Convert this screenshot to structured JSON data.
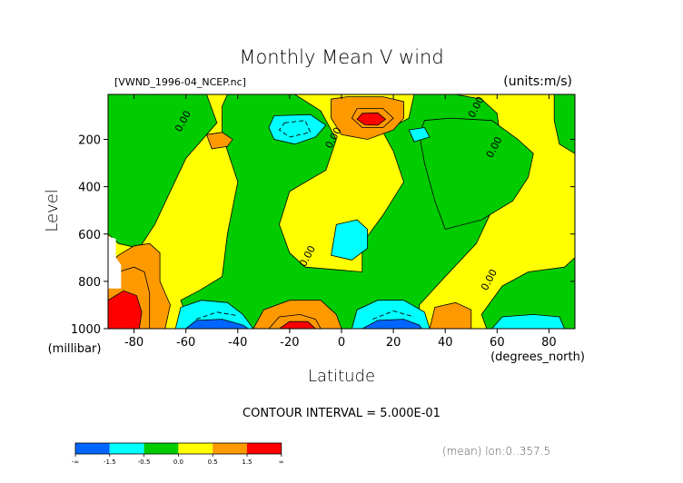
{
  "chart_data": {
    "type": "contour",
    "title": "Monthly Mean V wind",
    "source_label": "[VWND_1996-04_NCEP.nc]",
    "units_label": "(units:m/s)",
    "xlabel": "Latitude",
    "x_units": "(degrees_north)",
    "ylabel": "Level",
    "y_units": "(millibar)",
    "xlim": [
      -90,
      90
    ],
    "ylim": [
      1000,
      10
    ],
    "x_ticks": [
      -80,
      -60,
      -40,
      -20,
      0,
      20,
      40,
      60,
      80
    ],
    "x_tick_labels": [
      "-80",
      "-60",
      "-40",
      "-20",
      "0",
      "20",
      "40",
      "60",
      "80"
    ],
    "y_ticks": [
      200,
      400,
      600,
      800,
      1000
    ],
    "y_tick_labels": [
      "200",
      "400",
      "600",
      "800",
      "1000"
    ],
    "contour_interval_text": "CONTOUR INTERVAL = 5.000E-01",
    "contour_labels": [
      {
        "text": "0.00",
        "x": -60,
        "y": 130
      },
      {
        "text": "0.00",
        "x": -2,
        "y": 200
      },
      {
        "text": "0.00",
        "x": 53,
        "y": 70
      },
      {
        "text": "0.00",
        "x": 60,
        "y": 240
      },
      {
        "text": "0.00",
        "x": -12,
        "y": 700
      },
      {
        "text": "0.00",
        "x": 58,
        "y": 800
      }
    ],
    "regions": [
      {
        "level": "0 to 0.5",
        "color": "#FFFF00",
        "polygon": [
          [
            -90,
            10
          ],
          [
            90,
            10
          ],
          [
            90,
            1000
          ],
          [
            -90,
            1000
          ]
        ]
      },
      {
        "level": "-0.5 to 0",
        "color": "#00CC00",
        "polygon": [
          [
            -78,
            10
          ],
          [
            -52,
            10
          ],
          [
            -48,
            130
          ],
          [
            -60,
            280
          ],
          [
            -66,
            420
          ],
          [
            -72,
            560
          ],
          [
            -78,
            660
          ],
          [
            -86,
            640
          ],
          [
            -90,
            600
          ],
          [
            -90,
            10
          ]
        ]
      },
      {
        "level": "-0.5 to 0",
        "color": "#00CC00",
        "polygon": [
          [
            -44,
            10
          ],
          [
            -18,
            10
          ],
          [
            -8,
            80
          ],
          [
            -2,
            200
          ],
          [
            -6,
            330
          ],
          [
            -20,
            420
          ],
          [
            -24,
            560
          ],
          [
            -20,
            680
          ],
          [
            -14,
            740
          ],
          [
            8,
            760
          ],
          [
            8,
            640
          ],
          [
            16,
            520
          ],
          [
            24,
            380
          ],
          [
            20,
            250
          ],
          [
            16,
            170
          ],
          [
            26,
            110
          ],
          [
            28,
            10
          ],
          [
            44,
            10
          ],
          [
            54,
            30
          ],
          [
            60,
            90
          ],
          [
            62,
            260
          ],
          [
            58,
            500
          ],
          [
            52,
            640
          ],
          [
            40,
            780
          ],
          [
            30,
            900
          ],
          [
            30,
            1000
          ],
          [
            -58,
            1000
          ],
          [
            -62,
            880
          ],
          [
            -55,
            840
          ],
          [
            -46,
            780
          ],
          [
            -44,
            600
          ],
          [
            -40,
            380
          ],
          [
            -46,
            180
          ],
          [
            -46,
            60
          ]
        ]
      },
      {
        "level": "-0.5 to 0",
        "color": "#00CC00",
        "polygon": [
          [
            32,
            120
          ],
          [
            42,
            110
          ],
          [
            58,
            120
          ],
          [
            68,
            200
          ],
          [
            74,
            260
          ],
          [
            72,
            360
          ],
          [
            66,
            460
          ],
          [
            54,
            540
          ],
          [
            40,
            580
          ],
          [
            36,
            460
          ],
          [
            32,
            300
          ],
          [
            30,
            180
          ]
        ]
      },
      {
        "level": "-0.5 to 0",
        "color": "#00CC00",
        "polygon": [
          [
            54,
            940
          ],
          [
            62,
            820
          ],
          [
            72,
            760
          ],
          [
            86,
            740
          ],
          [
            90,
            700
          ],
          [
            90,
            1000
          ],
          [
            56,
            1000
          ]
        ]
      },
      {
        "level": "-0.5 to 0",
        "color": "#00CC00",
        "polygon": [
          [
            82,
            10
          ],
          [
            90,
            10
          ],
          [
            90,
            260
          ],
          [
            84,
            220
          ],
          [
            82,
            120
          ]
        ]
      },
      {
        "level": "-1.0 to -0.5",
        "color": "#00FFFF",
        "polygon": [
          [
            -26,
            100
          ],
          [
            -12,
            95
          ],
          [
            -6,
            140
          ],
          [
            -10,
            190
          ],
          [
            -18,
            220
          ],
          [
            -26,
            200
          ],
          [
            -28,
            150
          ]
        ]
      },
      {
        "level": "-1.0 to -0.5",
        "color": "#00FFFF",
        "polygon": [
          [
            26,
            160
          ],
          [
            32,
            150
          ],
          [
            34,
            190
          ],
          [
            28,
            210
          ]
        ]
      },
      {
        "level": "-1.0 to -0.5",
        "color": "#00FFFF",
        "polygon": [
          [
            -2,
            560
          ],
          [
            6,
            540
          ],
          [
            10,
            580
          ],
          [
            10,
            660
          ],
          [
            4,
            710
          ],
          [
            -4,
            690
          ]
        ]
      },
      {
        "level": "-1.0 to -0.5",
        "color": "#00FFFF",
        "polygon": [
          [
            -64,
            1000
          ],
          [
            -62,
            910
          ],
          [
            -54,
            880
          ],
          [
            -44,
            890
          ],
          [
            -38,
            940
          ],
          [
            -34,
            1000
          ]
        ]
      },
      {
        "level": "-1.0 to -0.5",
        "color": "#00FFFF",
        "polygon": [
          [
            4,
            1000
          ],
          [
            6,
            920
          ],
          [
            14,
            880
          ],
          [
            24,
            880
          ],
          [
            32,
            930
          ],
          [
            34,
            1000
          ]
        ]
      },
      {
        "level": "-1.0 to -0.5",
        "color": "#00FFFF",
        "polygon": [
          [
            58,
            1000
          ],
          [
            62,
            950
          ],
          [
            74,
            940
          ],
          [
            84,
            950
          ],
          [
            86,
            1000
          ]
        ]
      },
      {
        "level": "-1.5 to -1.0",
        "color": "#0066FF",
        "polygon": [
          [
            -60,
            1000
          ],
          [
            -56,
            965
          ],
          [
            -46,
            960
          ],
          [
            -38,
            985
          ],
          [
            -36,
            1000
          ]
        ]
      },
      {
        "level": "-1.5 to -1.0",
        "color": "#0066FF",
        "polygon": [
          [
            8,
            1000
          ],
          [
            14,
            965
          ],
          [
            24,
            960
          ],
          [
            30,
            985
          ],
          [
            31,
            1000
          ]
        ]
      },
      {
        "level": "0.5 to 1.0",
        "color": "#FF9900",
        "polygon": [
          [
            -4,
            30
          ],
          [
            2,
            20
          ],
          [
            16,
            20
          ],
          [
            24,
            40
          ],
          [
            24,
            110
          ],
          [
            20,
            160
          ],
          [
            10,
            200
          ],
          [
            0,
            180
          ],
          [
            -4,
            110
          ]
        ]
      },
      {
        "level": "0.5 to 1.0",
        "color": "#FF9900",
        "polygon": [
          [
            -52,
            180
          ],
          [
            -46,
            170
          ],
          [
            -42,
            200
          ],
          [
            -44,
            230
          ],
          [
            -50,
            240
          ]
        ]
      },
      {
        "level": "0.5 to 1.0",
        "color": "#FF9900",
        "polygon": [
          [
            -90,
            730
          ],
          [
            -86,
            690
          ],
          [
            -80,
            650
          ],
          [
            -74,
            640
          ],
          [
            -70,
            680
          ],
          [
            -70,
            800
          ],
          [
            -66,
            900
          ],
          [
            -68,
            1000
          ],
          [
            -90,
            1000
          ]
        ]
      },
      {
        "level": "0.5 to 1.0",
        "color": "#FF9900",
        "polygon": [
          [
            -34,
            1000
          ],
          [
            -30,
            920
          ],
          [
            -20,
            880
          ],
          [
            -8,
            880
          ],
          [
            -2,
            940
          ],
          [
            0,
            1000
          ]
        ]
      },
      {
        "level": "0.5 to 1.0",
        "color": "#FF9900",
        "polygon": [
          [
            34,
            1000
          ],
          [
            36,
            910
          ],
          [
            44,
            890
          ],
          [
            50,
            920
          ],
          [
            50,
            1000
          ]
        ]
      },
      {
        "level": "1.0 to 1.5",
        "color": "#FF9900",
        "polygon": [
          [
            6,
            70
          ],
          [
            16,
            70
          ],
          [
            20,
            110
          ],
          [
            16,
            150
          ],
          [
            8,
            150
          ],
          [
            4,
            110
          ]
        ]
      },
      {
        "level": "1.0 to 1.5",
        "color": "#FF9900",
        "polygon": [
          [
            -90,
            800
          ],
          [
            -86,
            760
          ],
          [
            -80,
            740
          ],
          [
            -76,
            760
          ],
          [
            -74,
            850
          ],
          [
            -74,
            1000
          ],
          [
            -90,
            1000
          ]
        ]
      },
      {
        "level": "1.0 to 1.5",
        "color": "#FF9900",
        "polygon": [
          [
            -28,
            1000
          ],
          [
            -24,
            950
          ],
          [
            -16,
            940
          ],
          [
            -10,
            960
          ],
          [
            -8,
            1000
          ]
        ]
      },
      {
        "level": "> 1.5",
        "color": "#FF0000",
        "polygon": [
          [
            8,
            90
          ],
          [
            14,
            88
          ],
          [
            17,
            115
          ],
          [
            14,
            140
          ],
          [
            9,
            138
          ],
          [
            6,
            115
          ]
        ]
      },
      {
        "level": "> 1.5",
        "color": "#FF0000",
        "polygon": [
          [
            -90,
            880
          ],
          [
            -84,
            840
          ],
          [
            -79,
            860
          ],
          [
            -77,
            930
          ],
          [
            -78,
            1000
          ],
          [
            -90,
            1000
          ]
        ]
      },
      {
        "level": "> 1.5",
        "color": "#FF0000",
        "polygon": [
          [
            -24,
            1000
          ],
          [
            -20,
            970
          ],
          [
            -13,
            970
          ],
          [
            -10,
            1000
          ]
        ]
      }
    ],
    "missing_regions": [
      {
        "polygon": [
          [
            -90,
            610
          ],
          [
            -87,
            620
          ],
          [
            -87,
            700
          ],
          [
            -85,
            730
          ],
          [
            -85,
            830
          ],
          [
            -90,
            830
          ]
        ]
      }
    ],
    "dashed_contours": [
      {
        "level": -0.5,
        "points": [
          [
            -22,
            130
          ],
          [
            -14,
            120
          ],
          [
            -12,
            170
          ],
          [
            -20,
            190
          ],
          [
            -24,
            160
          ],
          [
            -22,
            130
          ]
        ]
      },
      {
        "level": -0.5,
        "points": [
          [
            -56,
            960
          ],
          [
            -48,
            930
          ],
          [
            -40,
            945
          ]
        ]
      },
      {
        "level": -0.5,
        "points": [
          [
            12,
            960
          ],
          [
            20,
            925
          ],
          [
            28,
            950
          ]
        ]
      }
    ],
    "colorbar": {
      "colors": [
        "#0066FF",
        "#00FFFF",
        "#00CC00",
        "#FFFF00",
        "#FF9900",
        "#FF0000"
      ],
      "tick_labels": [
        "-∞",
        "-1.5",
        "-0.5",
        "0.0",
        "0.5",
        "1.5",
        "∞"
      ]
    },
    "footer_note": "(mean) lon:0..357.5"
  }
}
